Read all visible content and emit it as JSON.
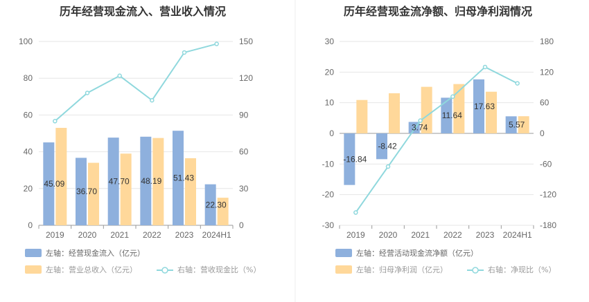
{
  "colors": {
    "blue": "#8eb0dd",
    "orange": "#ffd89a",
    "line": "#8fd8dd",
    "grid": "#e6e6e6",
    "axis": "#999999"
  },
  "chart_data": [
    {
      "type": "bar",
      "title": "历年经营现金流入、营业收入情况",
      "categories": [
        "2019",
        "2020",
        "2021",
        "2022",
        "2023",
        "2024H1"
      ],
      "left_axis": {
        "ticks": [
          "0",
          "20",
          "40",
          "60",
          "80",
          "100"
        ],
        "ylim": [
          0,
          100
        ]
      },
      "right_axis": {
        "ticks": [
          "0",
          "30",
          "60",
          "90",
          "120",
          "150"
        ],
        "ylim": [
          0,
          150
        ]
      },
      "series": [
        {
          "name": "左轴：经营现金流入（亿元）",
          "type": "bar",
          "axis": "left",
          "color": "#8eb0dd",
          "values": [
            45.09,
            36.7,
            47.7,
            48.19,
            51.43,
            22.3
          ],
          "labels": [
            "45.09",
            "36.70",
            "47.70",
            "48.19",
            "51.43",
            "22.30"
          ]
        },
        {
          "name": "左轴：营业总收入（亿元）",
          "type": "bar",
          "axis": "left",
          "color": "#ffd89a",
          "values": [
            53,
            34,
            39,
            47.5,
            36.5,
            15
          ]
        },
        {
          "name": "右轴：营收现金比（%）",
          "type": "line",
          "axis": "right",
          "color": "#8fd8dd",
          "values": [
            85,
            108,
            122,
            102,
            141,
            148
          ]
        }
      ],
      "legend_position": "bottom"
    },
    {
      "type": "bar",
      "title": "历年经营现金流净额、归母净利润情况",
      "categories": [
        "2019",
        "2020",
        "2021",
        "2022",
        "2023",
        "2024H1"
      ],
      "left_axis": {
        "ticks": [
          "-30",
          "-20",
          "-10",
          "0",
          "10",
          "20",
          "30"
        ],
        "ylim": [
          -30,
          30
        ]
      },
      "right_axis": {
        "ticks": [
          "-180",
          "-120",
          "-60",
          "0",
          "60",
          "120",
          "180"
        ],
        "ylim": [
          -180,
          180
        ]
      },
      "series": [
        {
          "name": "左轴：经营活动现金流净额（亿元）",
          "type": "bar",
          "axis": "left",
          "color": "#8eb0dd",
          "values": [
            -16.84,
            -8.42,
            3.74,
            11.64,
            17.63,
            5.57
          ],
          "labels": [
            "-16.84",
            "-8.42",
            "3.74",
            "11.64",
            "17.63",
            "5.57"
          ]
        },
        {
          "name": "左轴：归母净利润（亿元）",
          "type": "bar",
          "axis": "left",
          "color": "#ffd89a",
          "values": [
            10.9,
            13.1,
            15.2,
            16.1,
            13.6,
            5.6
          ]
        },
        {
          "name": "右轴：净现比（%）",
          "type": "line",
          "axis": "right",
          "color": "#8fd8dd",
          "values": [
            -155,
            -65,
            25,
            72,
            130,
            98
          ]
        }
      ],
      "legend_position": "bottom"
    }
  ]
}
